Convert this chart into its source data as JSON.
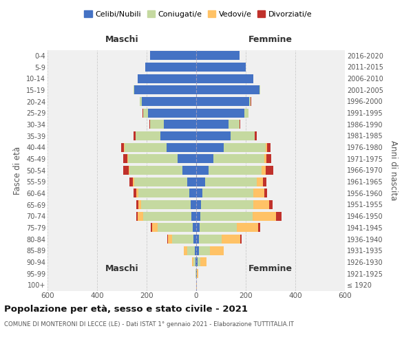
{
  "age_groups": [
    "100+",
    "95-99",
    "90-94",
    "85-89",
    "80-84",
    "75-79",
    "70-74",
    "65-69",
    "60-64",
    "55-59",
    "50-54",
    "45-49",
    "40-44",
    "35-39",
    "30-34",
    "25-29",
    "20-24",
    "15-19",
    "10-14",
    "5-9",
    "0-4"
  ],
  "birth_years": [
    "≤ 1920",
    "1921-1925",
    "1926-1930",
    "1931-1935",
    "1936-1940",
    "1941-1945",
    "1946-1950",
    "1951-1955",
    "1956-1960",
    "1961-1965",
    "1966-1970",
    "1971-1975",
    "1976-1980",
    "1981-1985",
    "1986-1990",
    "1991-1995",
    "1996-2000",
    "2001-2005",
    "2006-2010",
    "2011-2015",
    "2016-2020"
  ],
  "male": {
    "celibe": [
      0,
      1,
      3,
      5,
      12,
      15,
      20,
      22,
      28,
      35,
      55,
      75,
      120,
      145,
      130,
      195,
      220,
      250,
      235,
      205,
      185
    ],
    "coniugato": [
      1,
      2,
      8,
      30,
      85,
      140,
      195,
      200,
      205,
      215,
      215,
      200,
      170,
      100,
      55,
      20,
      8,
      3,
      1,
      0,
      0
    ],
    "vedovo": [
      0,
      1,
      5,
      15,
      18,
      22,
      20,
      10,
      8,
      5,
      3,
      2,
      1,
      0,
      0,
      0,
      0,
      0,
      0,
      0,
      0
    ],
    "divorziato": [
      0,
      0,
      0,
      1,
      3,
      5,
      8,
      10,
      12,
      15,
      22,
      18,
      12,
      8,
      4,
      2,
      1,
      0,
      0,
      0,
      0
    ]
  },
  "female": {
    "nubile": [
      1,
      2,
      5,
      10,
      12,
      15,
      18,
      20,
      25,
      35,
      50,
      70,
      110,
      140,
      130,
      195,
      215,
      255,
      230,
      200,
      175
    ],
    "coniugata": [
      0,
      2,
      12,
      45,
      90,
      150,
      210,
      210,
      205,
      210,
      215,
      205,
      170,
      95,
      45,
      15,
      5,
      2,
      0,
      0,
      0
    ],
    "vedova": [
      1,
      5,
      25,
      55,
      75,
      85,
      95,
      65,
      45,
      25,
      15,
      8,
      5,
      2,
      1,
      0,
      0,
      0,
      0,
      0,
      0
    ],
    "divorziata": [
      0,
      0,
      1,
      2,
      5,
      8,
      22,
      12,
      10,
      12,
      30,
      20,
      15,
      8,
      3,
      1,
      1,
      0,
      0,
      0,
      0
    ]
  },
  "colors": {
    "celibe": "#4472c4",
    "coniugato": "#c5d9a0",
    "vedovo": "#ffc266",
    "divorziato": "#c0312b"
  },
  "xlim": 600,
  "title": "Popolazione per età, sesso e stato civile - 2021",
  "subtitle": "COMUNE DI MONTERONI DI LECCE (LE) - Dati ISTAT 1° gennaio 2021 - Elaborazione TUTTITALIA.IT",
  "ylabel_left": "Fasce di età",
  "ylabel_right": "Anni di nascita",
  "xlabel_male": "Maschi",
  "xlabel_female": "Femmine",
  "bg_color": "#f0f0f0",
  "grid_color": "#cccccc"
}
